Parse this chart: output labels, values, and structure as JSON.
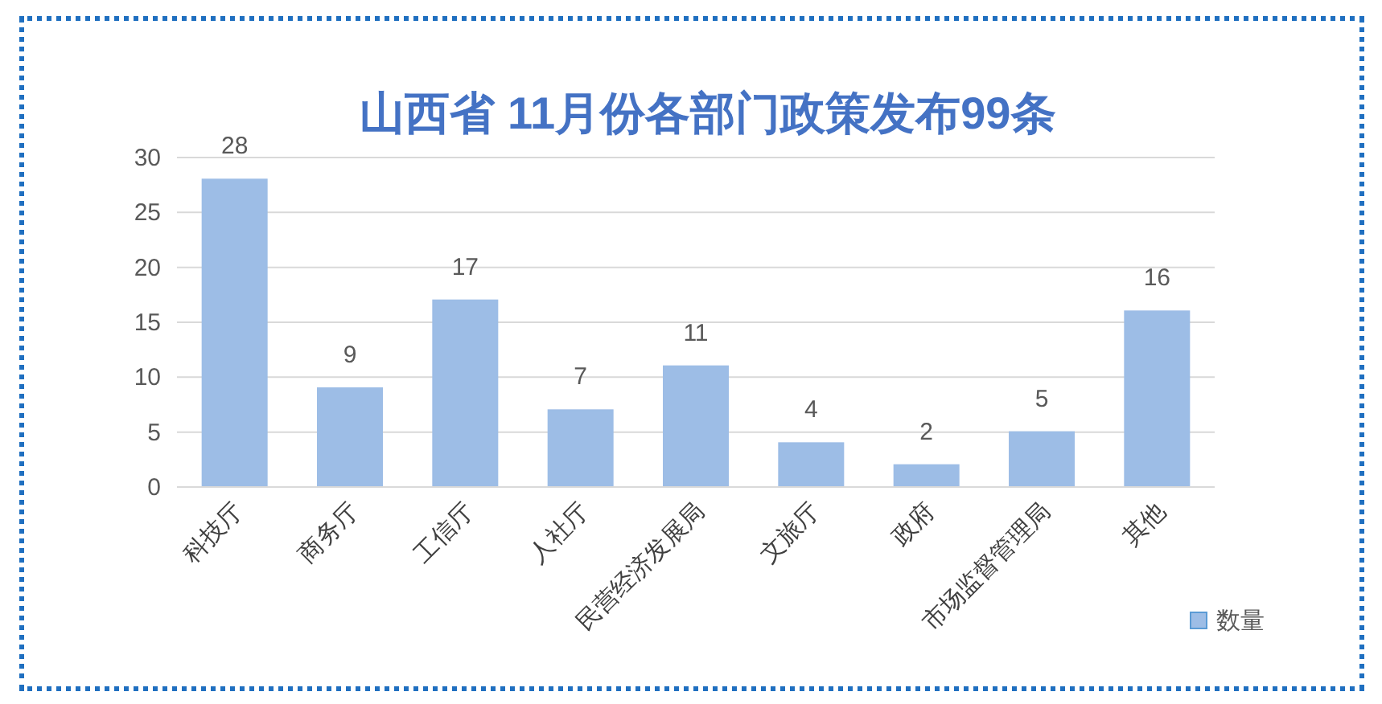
{
  "chart_data": {
    "type": "bar",
    "title": "山西省 11月份各部门政策发布99条",
    "categories": [
      "科技厅",
      "商务厅",
      "工信厅",
      "人社厅",
      "民营经济发展局",
      "文旅厅",
      "政府",
      "市场监督管理局",
      "其他"
    ],
    "series": [
      {
        "name": "数量",
        "color": "#9dbde6",
        "values": [
          28,
          9,
          17,
          7,
          11,
          4,
          2,
          5,
          16
        ]
      }
    ],
    "ylim": [
      0,
      30
    ],
    "yticks": [
      0,
      5,
      10,
      15,
      20,
      25,
      30
    ],
    "grid": "y",
    "data_labels": true,
    "legend": "bottom right"
  }
}
